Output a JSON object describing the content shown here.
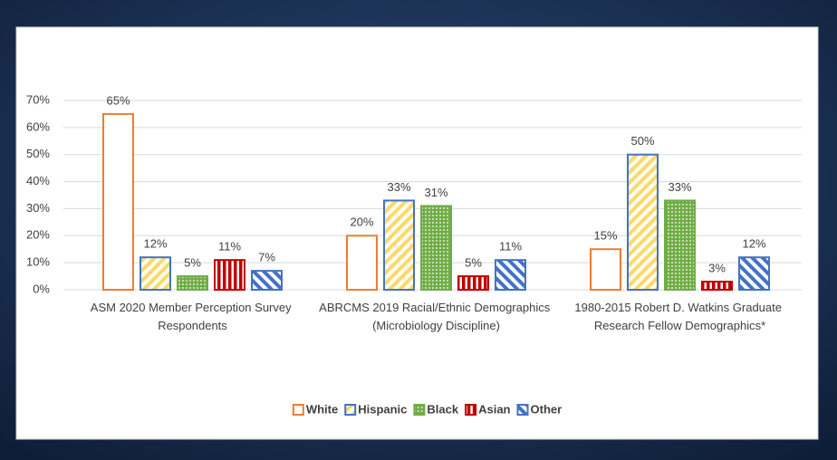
{
  "chart_data": {
    "type": "bar",
    "categories": [
      "ASM 2020 Member Perception Survey Respondents",
      "ABRCMS 2019 Racial/Ethnic Demographics (Microbiology Discipline)",
      "1980-2015 Robert D. Watkins Graduate Research Fellow Demographics*"
    ],
    "series": [
      {
        "name": "White",
        "color": "#ffffff",
        "edgecolor": "#ed7d31",
        "pattern": "none",
        "values": [
          65,
          20,
          15
        ],
        "value_labels": [
          "65%",
          "20%",
          "15%"
        ]
      },
      {
        "name": "Hispanic",
        "color": "#ffd966",
        "edgecolor": "#4472c4",
        "pattern": "hatch",
        "values": [
          12,
          33,
          50
        ],
        "value_labels": [
          "12%",
          "33%",
          "50%"
        ]
      },
      {
        "name": "Black",
        "color": "#70ad47",
        "edgecolor": "#70ad47",
        "pattern": "dots",
        "values": [
          5,
          31,
          33
        ],
        "value_labels": [
          "5%",
          "31%",
          "33%"
        ]
      },
      {
        "name": "Asian",
        "color": "#c00000",
        "edgecolor": "#c00000",
        "pattern": "vstripes",
        "values": [
          11,
          5,
          3
        ],
        "value_labels": [
          "11%",
          "5%",
          "3%"
        ]
      },
      {
        "name": "Other",
        "color": "#4472c4",
        "edgecolor": "#4472c4",
        "pattern": "hatch-rev",
        "values": [
          7,
          11,
          12
        ],
        "value_labels": [
          "7%",
          "11%",
          "12%"
        ]
      }
    ],
    "ylim": [
      0,
      70
    ],
    "yticks": [
      {
        "value": 0,
        "label": "0%"
      },
      {
        "value": 10,
        "label": "10%"
      },
      {
        "value": 20,
        "label": "20%"
      },
      {
        "value": 30,
        "label": "30%"
      },
      {
        "value": 40,
        "label": "40%"
      },
      {
        "value": 50,
        "label": "50%"
      },
      {
        "value": 60,
        "label": "60%"
      },
      {
        "value": 70,
        "label": "70%"
      }
    ],
    "grid": true,
    "legend": "bottom"
  }
}
